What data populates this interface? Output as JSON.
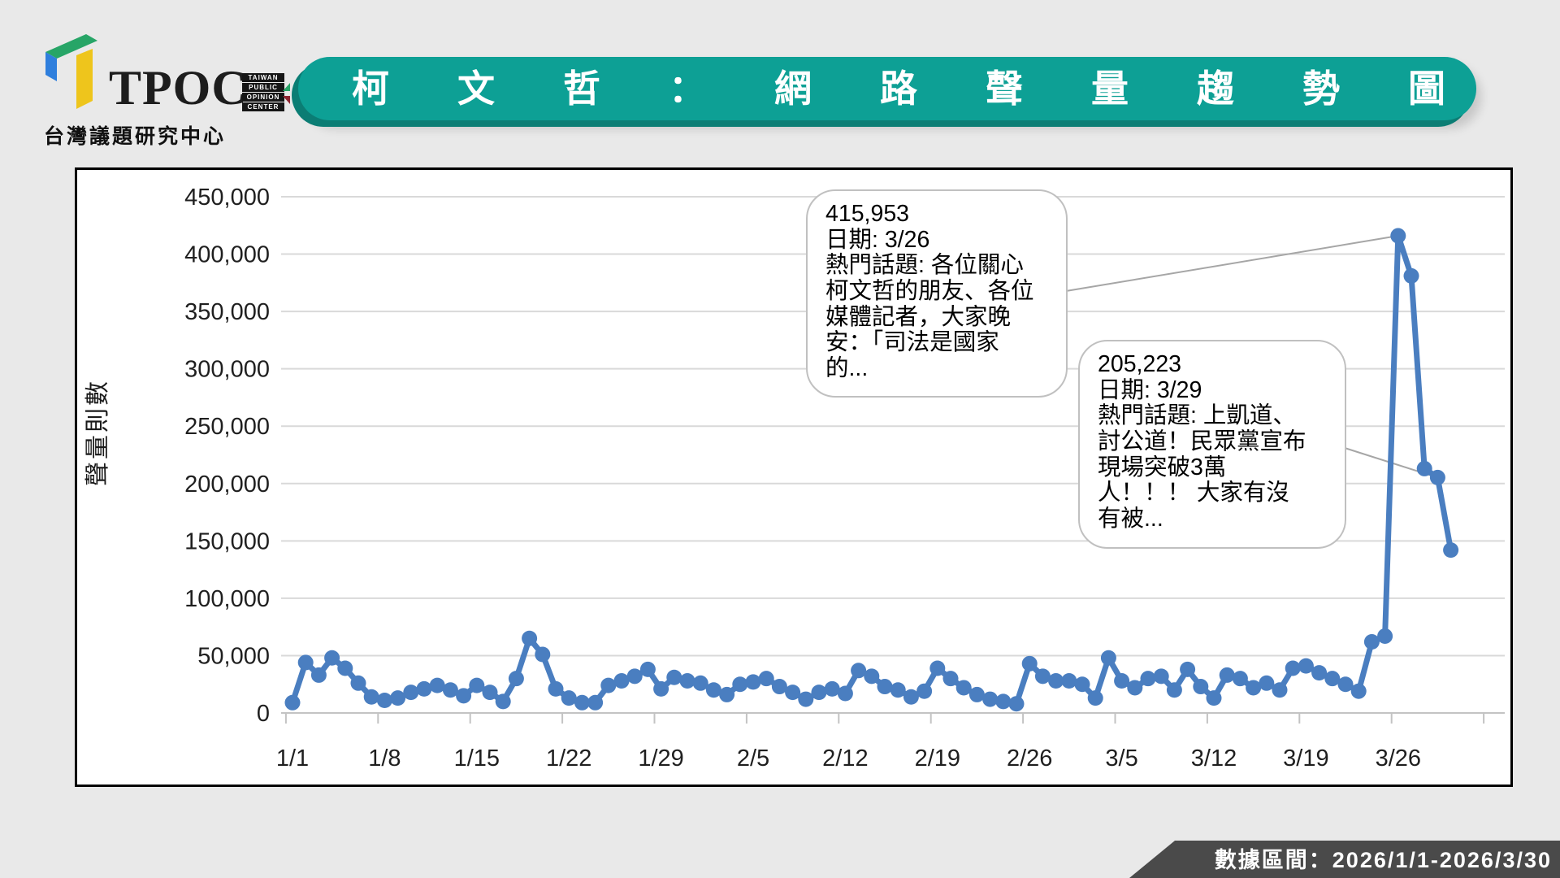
{
  "logo": {
    "brand": "TPOC",
    "badge_lines": [
      "TAIWAN",
      "PUBLIC",
      "OPINION",
      "CENTER"
    ],
    "org_name": "台灣議題研究中心",
    "mark_colors": {
      "green": "#27a567",
      "blue": "#2f7fdd",
      "yellow": "#eec51c"
    }
  },
  "header": {
    "title": "柯文哲：網路聲量趨勢圖",
    "banner_color": "#0da095"
  },
  "footer": {
    "label": "數據區間：2026/1/1-2026/3/30",
    "bar_color": "#4a4a4a"
  },
  "chart_data": {
    "type": "line",
    "title": "柯文哲：網路聲量趨勢圖",
    "ylabel": "聲量則數",
    "xlabel": "",
    "ylim": [
      0,
      450000
    ],
    "ytick_step": 50000,
    "grid": "horizontal",
    "legend": "none",
    "line_color": "#4a7ec0",
    "grid_color": "#d9d9d9",
    "x_tick_labels": [
      "1/1",
      "1/8",
      "1/15",
      "1/22",
      "1/29",
      "2/5",
      "2/12",
      "2/19",
      "2/26",
      "3/5",
      "3/12",
      "3/19",
      "3/26"
    ],
    "dates": [
      "1/1",
      "1/2",
      "1/3",
      "1/4",
      "1/5",
      "1/6",
      "1/7",
      "1/8",
      "1/9",
      "1/10",
      "1/11",
      "1/12",
      "1/13",
      "1/14",
      "1/15",
      "1/16",
      "1/17",
      "1/18",
      "1/19",
      "1/20",
      "1/21",
      "1/22",
      "1/23",
      "1/24",
      "1/25",
      "1/26",
      "1/27",
      "1/28",
      "1/29",
      "1/30",
      "1/31",
      "2/1",
      "2/2",
      "2/3",
      "2/4",
      "2/5",
      "2/6",
      "2/7",
      "2/8",
      "2/9",
      "2/10",
      "2/11",
      "2/12",
      "2/13",
      "2/14",
      "2/15",
      "2/16",
      "2/17",
      "2/18",
      "2/19",
      "2/20",
      "2/21",
      "2/22",
      "2/23",
      "2/24",
      "2/25",
      "2/26",
      "2/27",
      "2/28",
      "3/1",
      "3/2",
      "3/3",
      "3/4",
      "3/5",
      "3/6",
      "3/7",
      "3/8",
      "3/9",
      "3/10",
      "3/11",
      "3/12",
      "3/13",
      "3/14",
      "3/15",
      "3/16",
      "3/17",
      "3/18",
      "3/19",
      "3/20",
      "3/21",
      "3/22",
      "3/23",
      "3/24",
      "3/25",
      "3/26",
      "3/27",
      "3/28",
      "3/29",
      "3/30"
    ],
    "series": [
      {
        "name": "聲量則數",
        "values": [
          9000,
          44000,
          33000,
          48000,
          39000,
          26000,
          14000,
          11000,
          13000,
          18000,
          21000,
          24000,
          20000,
          15000,
          24000,
          18000,
          10000,
          30000,
          65000,
          51000,
          21000,
          13000,
          9000,
          9000,
          24000,
          28000,
          32000,
          38000,
          21000,
          31000,
          28000,
          26000,
          20000,
          16000,
          25000,
          27000,
          30000,
          23000,
          18000,
          12000,
          18000,
          21000,
          17000,
          37000,
          32000,
          23000,
          20000,
          14000,
          19000,
          39000,
          30000,
          22000,
          16000,
          12000,
          10000,
          8000,
          43000,
          32000,
          28000,
          28000,
          25000,
          13000,
          48000,
          28000,
          22000,
          30000,
          32000,
          20000,
          38000,
          23000,
          13000,
          33000,
          30000,
          22000,
          26000,
          20000,
          39000,
          41000,
          35000,
          30000,
          25000,
          19000,
          62000,
          67000,
          415953,
          381000,
          213000,
          205223,
          142000
        ]
      }
    ],
    "annotations": [
      {
        "value": "415,953",
        "date_label": "日期: 3/26",
        "topic_label": "熱門話題: 各位關心\n柯文哲的朋友、各位\n媒體記者，大家晚\n安：「司法是國家\n的...",
        "anchor_date": "3/26"
      },
      {
        "value": "205,223",
        "date_label": "日期: 3/29",
        "topic_label": "熱門話題: 上凱道、\n討公道！民眾黨宣布\n現場突破3萬\n人！！！ 大家有沒\n有被...",
        "anchor_date": "3/29"
      }
    ]
  }
}
